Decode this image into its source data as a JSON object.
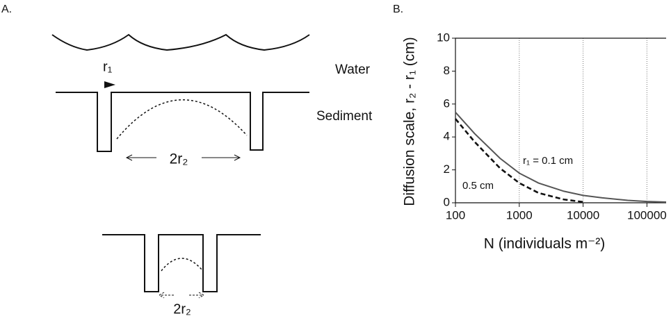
{
  "diagram": {
    "panel_label": "A.",
    "r1_label": "r₁",
    "water_label": "Water",
    "sediment_label": "Sediment",
    "top_width_label": "2r₂",
    "bottom_width_label": "2r₂"
  },
  "chart_data": {
    "type": "line",
    "panel_label": "B.",
    "xlabel": "N  (individuals m⁻²)",
    "ylabel": "Diffusion scale, r₂ - r₁ (cm)",
    "x": [
      100,
      200,
      500,
      1000,
      2000,
      5000,
      10000,
      20000,
      50000,
      100000,
      200000
    ],
    "series": [
      {
        "name": "r₁ = 0.1 cm",
        "color": "#555555",
        "dash": false,
        "values": [
          5.5,
          4.2,
          2.7,
          1.8,
          1.2,
          0.7,
          0.45,
          0.3,
          0.15,
          0.08,
          0.04
        ]
      },
      {
        "name": "0.5 cm",
        "color": "#111111",
        "dash": true,
        "values": [
          5.1,
          3.7,
          2.1,
          1.2,
          0.6,
          0.2,
          0.05,
          null,
          null,
          null,
          null
        ]
      }
    ],
    "xlog": true,
    "xlim": [
      100,
      200000
    ],
    "xticks": [
      100,
      1000,
      10000,
      100000
    ],
    "ylim": [
      0,
      10
    ],
    "yticks": [
      0,
      2,
      4,
      6,
      8,
      10
    ],
    "grid": true
  }
}
